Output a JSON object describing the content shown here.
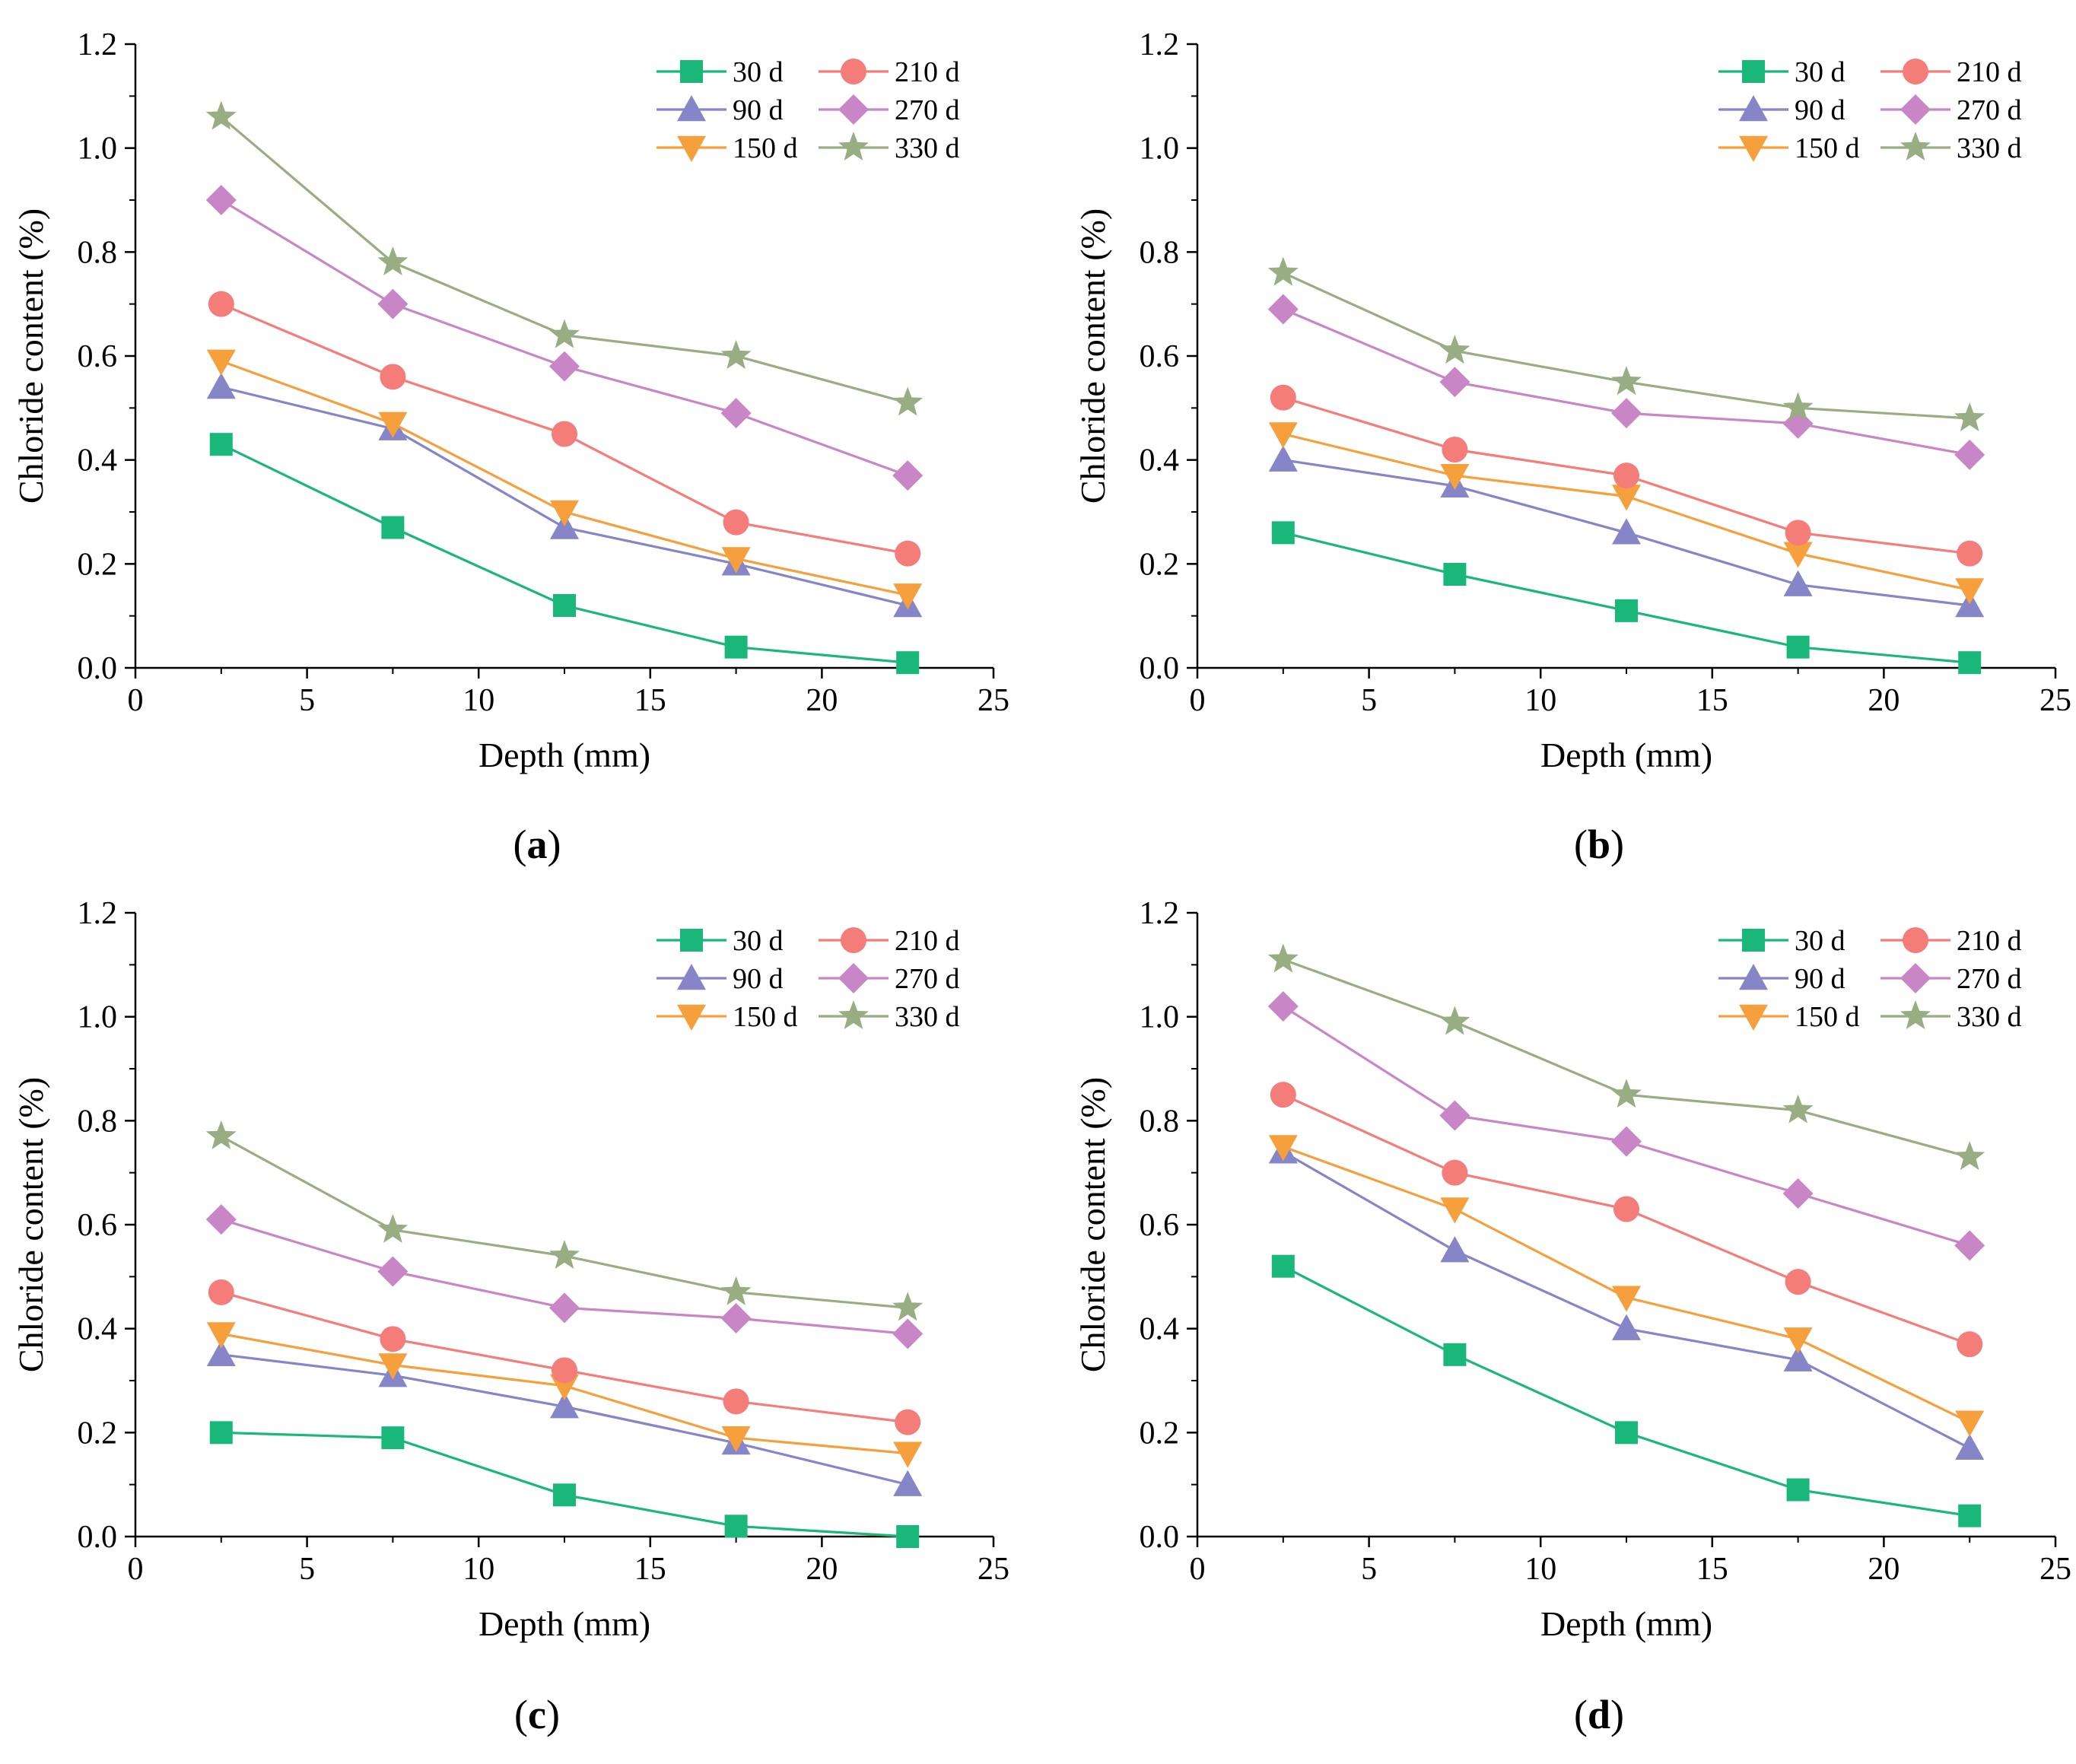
{
  "figure": {
    "panels": [
      {
        "label_open": "(",
        "label_letter": "a",
        "label_close": ")"
      },
      {
        "label_open": "(",
        "label_letter": "b",
        "label_close": ")"
      },
      {
        "label_open": "(",
        "label_letter": "c",
        "label_close": ")"
      },
      {
        "label_open": "(",
        "label_letter": "d",
        "label_close": ")"
      }
    ],
    "series_styles": [
      {
        "name": "30 d",
        "color": "#1ab77a",
        "marker": "square"
      },
      {
        "name": "90 d",
        "color": "#8585c8",
        "marker": "triangle-up"
      },
      {
        "name": "150 d",
        "color": "#f5a03c",
        "marker": "triangle-down"
      },
      {
        "name": "210 d",
        "color": "#f47c79",
        "marker": "circle"
      },
      {
        "name": "270 d",
        "color": "#c886c6",
        "marker": "diamond"
      },
      {
        "name": "330 d",
        "color": "#99ad82",
        "marker": "star"
      }
    ]
  },
  "chart_data": [
    {
      "type": "line",
      "panel": "a",
      "xlabel": "Depth (mm)",
      "ylabel": "Chloride content (%)",
      "xlim": [
        0,
        25
      ],
      "ylim": [
        0,
        1.2
      ],
      "xticks": [
        "0",
        "5",
        "10",
        "15",
        "20",
        "25"
      ],
      "yticks": [
        "0.0",
        "0.2",
        "0.4",
        "0.6",
        "0.8",
        "1.0",
        "1.2"
      ],
      "grid": false,
      "legend_position": "top-right",
      "x": [
        2.5,
        7.5,
        12.5,
        17.5,
        22.5
      ],
      "series": [
        {
          "name": "30 d",
          "values": [
            0.43,
            0.27,
            0.12,
            0.04,
            0.01
          ]
        },
        {
          "name": "90 d",
          "values": [
            0.54,
            0.46,
            0.27,
            0.2,
            0.12
          ]
        },
        {
          "name": "150 d",
          "values": [
            0.59,
            0.47,
            0.3,
            0.21,
            0.14
          ]
        },
        {
          "name": "210 d",
          "values": [
            0.7,
            0.56,
            0.45,
            0.28,
            0.22
          ]
        },
        {
          "name": "270 d",
          "values": [
            0.9,
            0.7,
            0.58,
            0.49,
            0.37
          ]
        },
        {
          "name": "330 d",
          "values": [
            1.06,
            0.78,
            0.64,
            0.6,
            0.51
          ]
        }
      ]
    },
    {
      "type": "line",
      "panel": "b",
      "xlabel": "Depth (mm)",
      "ylabel": "Chloride content (%)",
      "xlim": [
        0,
        25
      ],
      "ylim": [
        0,
        1.2
      ],
      "xticks": [
        "0",
        "5",
        "10",
        "15",
        "20",
        "25"
      ],
      "yticks": [
        "0.0",
        "0.2",
        "0.4",
        "0.6",
        "0.8",
        "1.0",
        "1.2"
      ],
      "grid": false,
      "legend_position": "top-right",
      "x": [
        2.5,
        7.5,
        12.5,
        17.5,
        22.5
      ],
      "series": [
        {
          "name": "30 d",
          "values": [
            0.26,
            0.18,
            0.11,
            0.04,
            0.01
          ]
        },
        {
          "name": "90 d",
          "values": [
            0.4,
            0.35,
            0.26,
            0.16,
            0.12
          ]
        },
        {
          "name": "150 d",
          "values": [
            0.45,
            0.37,
            0.33,
            0.22,
            0.15
          ]
        },
        {
          "name": "210 d",
          "values": [
            0.52,
            0.42,
            0.37,
            0.26,
            0.22
          ]
        },
        {
          "name": "270 d",
          "values": [
            0.69,
            0.55,
            0.49,
            0.47,
            0.41
          ]
        },
        {
          "name": "330 d",
          "values": [
            0.76,
            0.61,
            0.55,
            0.5,
            0.48
          ]
        }
      ]
    },
    {
      "type": "line",
      "panel": "c",
      "xlabel": "Depth (mm)",
      "ylabel": "Chloride content (%)",
      "xlim": [
        0,
        25
      ],
      "ylim": [
        0,
        1.2
      ],
      "xticks": [
        "0",
        "5",
        "10",
        "15",
        "20",
        "25"
      ],
      "yticks": [
        "0.0",
        "0.2",
        "0.4",
        "0.6",
        "0.8",
        "1.0",
        "1.2"
      ],
      "grid": false,
      "legend_position": "top-right",
      "x": [
        2.5,
        7.5,
        12.5,
        17.5,
        22.5
      ],
      "series": [
        {
          "name": "30 d",
          "values": [
            0.2,
            0.19,
            0.08,
            0.02,
            0.0
          ]
        },
        {
          "name": "90 d",
          "values": [
            0.35,
            0.31,
            0.25,
            0.18,
            0.1
          ]
        },
        {
          "name": "150 d",
          "values": [
            0.39,
            0.33,
            0.29,
            0.19,
            0.16
          ]
        },
        {
          "name": "210 d",
          "values": [
            0.47,
            0.38,
            0.32,
            0.26,
            0.22
          ]
        },
        {
          "name": "270 d",
          "values": [
            0.61,
            0.51,
            0.44,
            0.42,
            0.39
          ]
        },
        {
          "name": "330 d",
          "values": [
            0.77,
            0.59,
            0.54,
            0.47,
            0.44
          ]
        }
      ]
    },
    {
      "type": "line",
      "panel": "d",
      "xlabel": "Depth (mm)",
      "ylabel": "Chloride content (%)",
      "xlim": [
        0,
        25
      ],
      "ylim": [
        0,
        1.2
      ],
      "xticks": [
        "0",
        "5",
        "10",
        "15",
        "20",
        "25"
      ],
      "yticks": [
        "0.0",
        "0.2",
        "0.4",
        "0.6",
        "0.8",
        "1.0",
        "1.2"
      ],
      "grid": false,
      "legend_position": "top-right",
      "x": [
        2.5,
        7.5,
        12.5,
        17.5,
        22.5
      ],
      "series": [
        {
          "name": "30 d",
          "values": [
            0.52,
            0.35,
            0.2,
            0.09,
            0.04
          ]
        },
        {
          "name": "90 d",
          "values": [
            0.74,
            0.55,
            0.4,
            0.34,
            0.17
          ]
        },
        {
          "name": "150 d",
          "values": [
            0.75,
            0.63,
            0.46,
            0.38,
            0.22
          ]
        },
        {
          "name": "210 d",
          "values": [
            0.85,
            0.7,
            0.63,
            0.49,
            0.37
          ]
        },
        {
          "name": "270 d",
          "values": [
            1.02,
            0.81,
            0.76,
            0.66,
            0.56
          ]
        },
        {
          "name": "330 d",
          "values": [
            1.11,
            0.99,
            0.85,
            0.82,
            0.73
          ]
        }
      ]
    }
  ]
}
